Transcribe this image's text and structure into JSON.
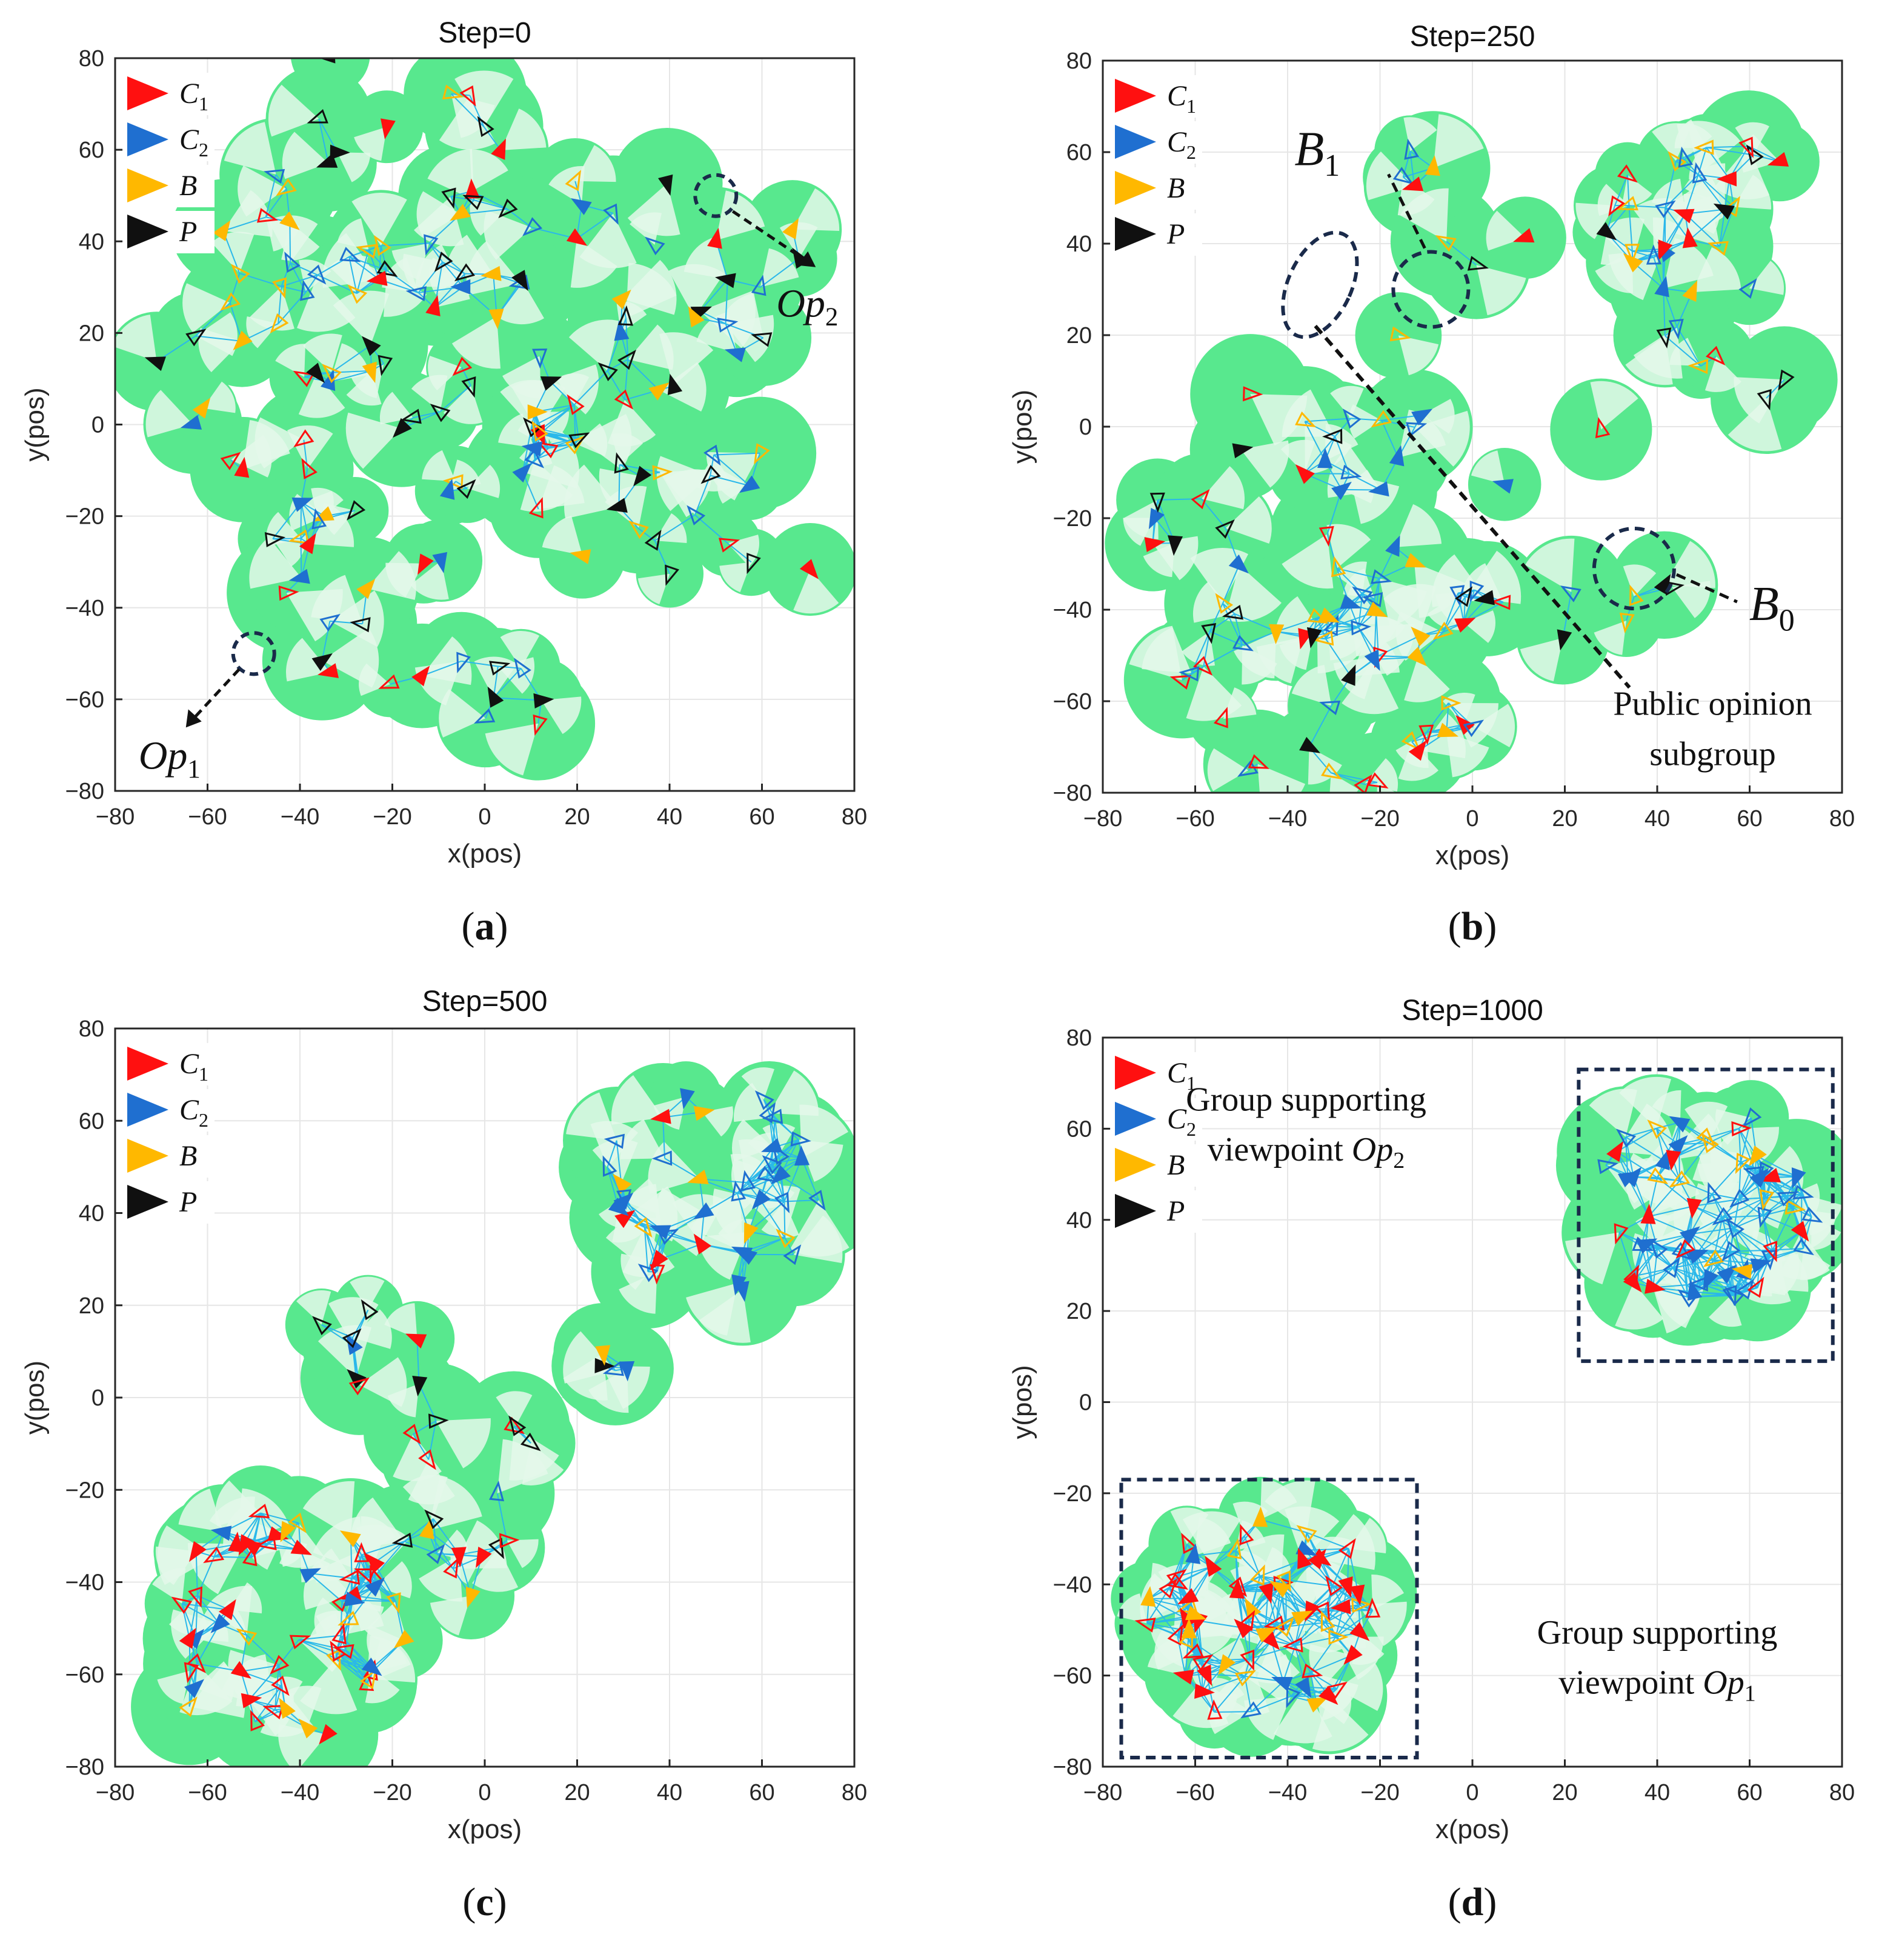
{
  "figure": {
    "axis_xlabel": "x(pos)",
    "axis_ylabel": "y(pos)",
    "xticks": [
      "-80",
      "-60",
      "-40",
      "-20",
      "0",
      "20",
      "40",
      "60",
      "80"
    ],
    "yticks": [
      "80",
      "60",
      "40",
      "20",
      "0",
      "-20",
      "-40",
      "-60",
      "-80"
    ],
    "legend": [
      {
        "base": "C",
        "sub": "1",
        "color": "#ff1010"
      },
      {
        "base": "C",
        "sub": "2",
        "color": "#1f6fd0"
      },
      {
        "base": "B",
        "sub": "",
        "color": "#ffb800"
      },
      {
        "base": "P",
        "sub": "",
        "color": "#101010"
      }
    ],
    "colors": {
      "green": "#58e88e",
      "light_green": "#e4f8ea",
      "edge": "#2ab8ea",
      "grid": "#e6e6e6",
      "annotation": "#1a2a4a"
    }
  },
  "chart_data": [
    {
      "type": "scatter",
      "title": "Step=0",
      "caption_letter": "a",
      "xlabel": "x(pos)",
      "ylabel": "y(pos)",
      "xlim": [
        -80,
        80
      ],
      "ylim": [
        -80,
        80
      ],
      "annotations": {
        "op1": {
          "base": "Op",
          "sub": "1",
          "x": -50,
          "y": -50
        },
        "op2": {
          "base": "Op",
          "sub": "2",
          "x": 50,
          "y": 50
        }
      },
      "agents_note": "Agent markers (C1 red, C2 blue, B yellow, P black) at approximate positions",
      "seed": 11
    },
    {
      "type": "scatter",
      "title": "Step=250",
      "caption_letter": "b",
      "xlabel": "x(pos)",
      "ylabel": "y(pos)",
      "xlim": [
        -80,
        80
      ],
      "ylim": [
        -80,
        80
      ],
      "annotations": {
        "b0": {
          "base": "B",
          "sub": "0",
          "x": 35,
          "y": -31
        },
        "b1": {
          "base": "B",
          "sub": "1",
          "x": -9,
          "y": 30
        },
        "subgroup_line1": "Public opinion",
        "subgroup_line2": "subgroup"
      },
      "seed": 23
    },
    {
      "type": "scatter",
      "title": "Step=500",
      "caption_letter": "c",
      "xlabel": "x(pos)",
      "ylabel": "y(pos)",
      "xlim": [
        -80,
        80
      ],
      "ylim": [
        -80,
        80
      ],
      "seed": 37
    },
    {
      "type": "scatter",
      "title": "Step=1000",
      "caption_letter": "d",
      "xlabel": "x(pos)",
      "ylabel": "y(pos)",
      "xlim": [
        -80,
        80
      ],
      "ylim": [
        -80,
        80
      ],
      "annotations": {
        "group_op2_line1": "Group supporting",
        "group_op2_line2": "viewpoint",
        "group_op2_base": "Op",
        "group_op2_sub": "2",
        "group_op1_line1": "Group supporting",
        "group_op1_line2": "viewpoint",
        "group_op1_base": "Op",
        "group_op1_sub": "1",
        "box_op2": {
          "x0": 23,
          "x1": 78,
          "y0": 9,
          "y1": 73
        },
        "box_op1": {
          "x0": -76,
          "x1": -12,
          "y0": -78,
          "y1": -17
        }
      },
      "seed": 51
    }
  ]
}
